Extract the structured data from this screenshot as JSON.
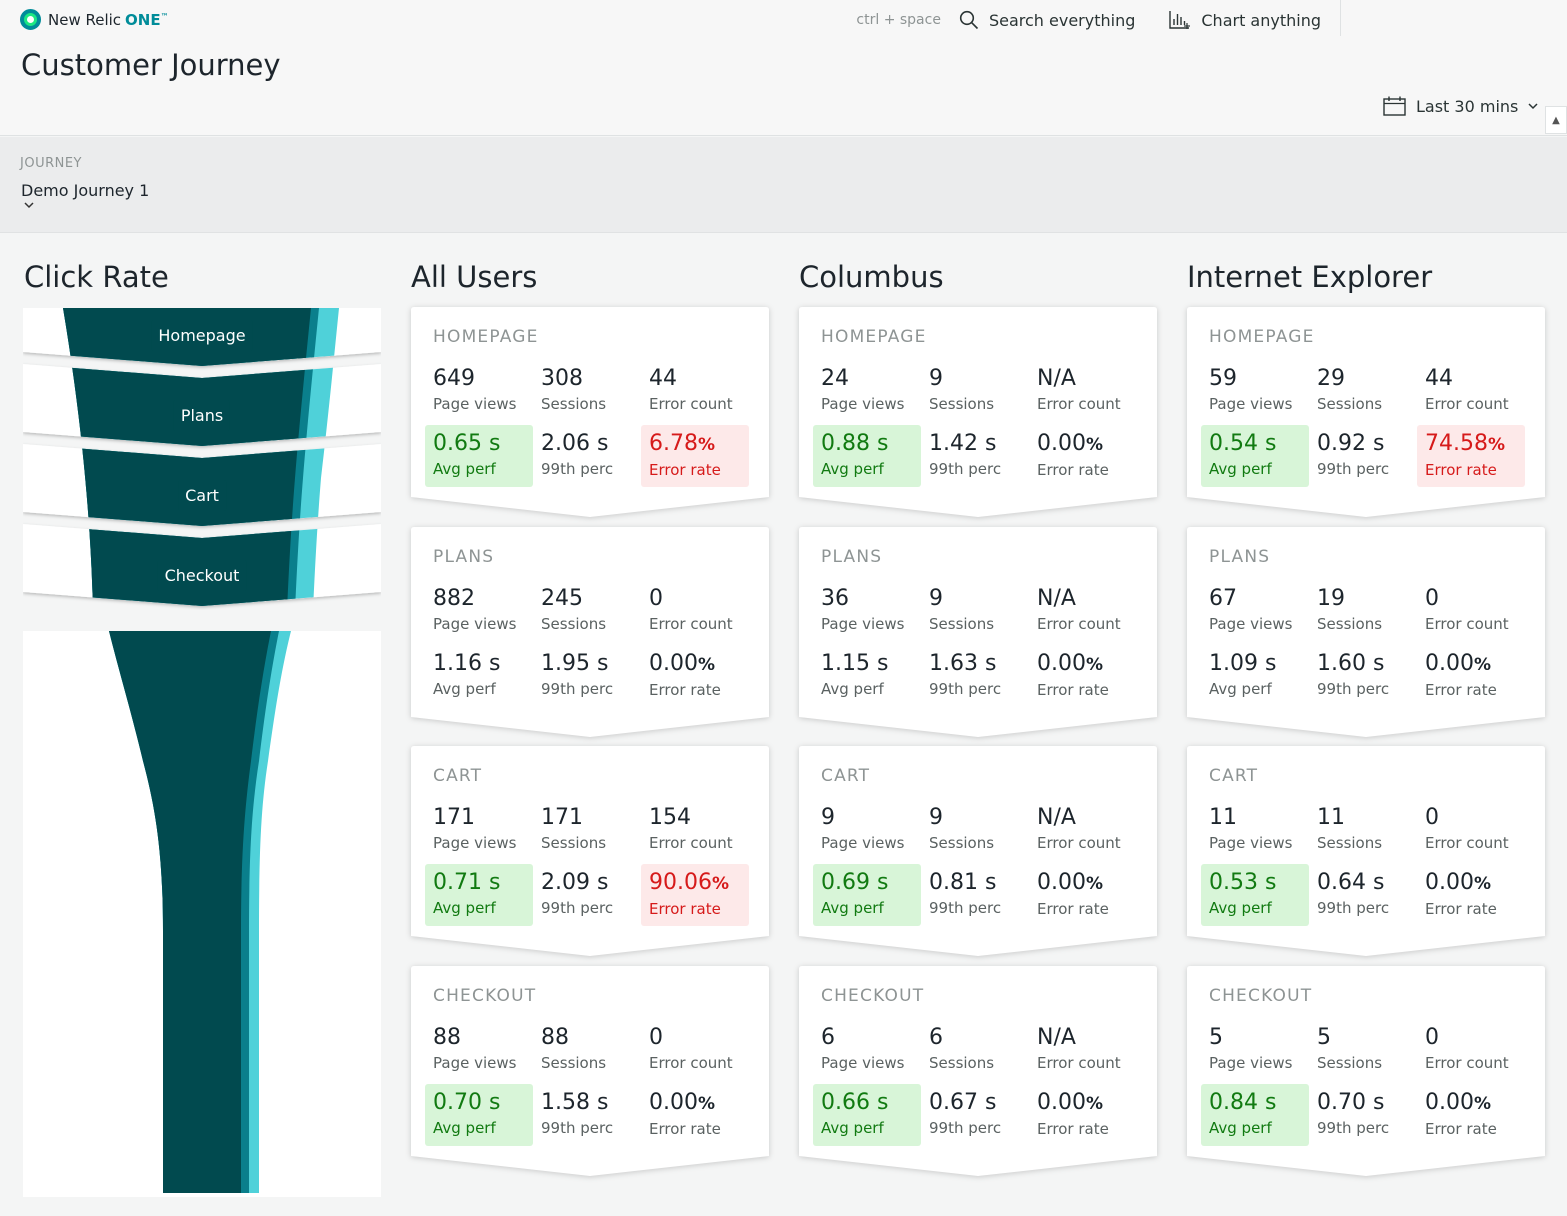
{
  "app": {
    "brand": "New Relic",
    "brand_suffix": "ONE",
    "trademark": "™"
  },
  "header": {
    "page_title": "Customer Journey",
    "shortcut": "ctrl + space",
    "search_label": "Search everything",
    "chart_label": "Chart anything",
    "time_range": "Last 30 mins"
  },
  "filter": {
    "label": "JOURNEY",
    "value": "Demo Journey 1"
  },
  "funnel": {
    "title": "Click Rate",
    "steps": [
      "Homepage",
      "Plans",
      "Cart",
      "Checkout"
    ],
    "colors": {
      "dark": "#014a4f",
      "mid": "#0a7f8c",
      "light": "#4fd1d9"
    }
  },
  "labels": {
    "page_views": "Page views",
    "sessions": "Sessions",
    "error_count": "Error count",
    "avg_perf": "Avg perf",
    "p99": "99th perc",
    "error_rate": "Error rate",
    "percent_unit": "%"
  },
  "status_colors": {
    "good_bg": "#d8f5d8",
    "good_fg": "#117a11",
    "bad_bg": "#fde9e9",
    "bad_fg": "#d61a1a"
  },
  "columns": [
    {
      "title": "All Users",
      "steps": [
        {
          "name": "HOMEPAGE",
          "page_views": "649",
          "sessions": "308",
          "error_count": "44",
          "avg_perf": "0.65 s",
          "p99": "2.06 s",
          "error_rate": "6.78",
          "avg_status": "good",
          "err_status": "bad"
        },
        {
          "name": "PLANS",
          "page_views": "882",
          "sessions": "245",
          "error_count": "0",
          "avg_perf": "1.16 s",
          "p99": "1.95 s",
          "error_rate": "0.00",
          "avg_status": "none",
          "err_status": "none"
        },
        {
          "name": "CART",
          "page_views": "171",
          "sessions": "171",
          "error_count": "154",
          "avg_perf": "0.71 s",
          "p99": "2.09 s",
          "error_rate": "90.06",
          "avg_status": "good",
          "err_status": "bad"
        },
        {
          "name": "CHECKOUT",
          "page_views": "88",
          "sessions": "88",
          "error_count": "0",
          "avg_perf": "0.70 s",
          "p99": "1.58 s",
          "error_rate": "0.00",
          "avg_status": "good",
          "err_status": "none"
        }
      ]
    },
    {
      "title": "Columbus",
      "steps": [
        {
          "name": "HOMEPAGE",
          "page_views": "24",
          "sessions": "9",
          "error_count": "N/A",
          "avg_perf": "0.88 s",
          "p99": "1.42 s",
          "error_rate": "0.00",
          "avg_status": "good",
          "err_status": "none"
        },
        {
          "name": "PLANS",
          "page_views": "36",
          "sessions": "9",
          "error_count": "N/A",
          "avg_perf": "1.15 s",
          "p99": "1.63 s",
          "error_rate": "0.00",
          "avg_status": "none",
          "err_status": "none"
        },
        {
          "name": "CART",
          "page_views": "9",
          "sessions": "9",
          "error_count": "N/A",
          "avg_perf": "0.69 s",
          "p99": "0.81 s",
          "error_rate": "0.00",
          "avg_status": "good",
          "err_status": "none"
        },
        {
          "name": "CHECKOUT",
          "page_views": "6",
          "sessions": "6",
          "error_count": "N/A",
          "avg_perf": "0.66 s",
          "p99": "0.67 s",
          "error_rate": "0.00",
          "avg_status": "good",
          "err_status": "none"
        }
      ]
    },
    {
      "title": "Internet Explorer",
      "steps": [
        {
          "name": "HOMEPAGE",
          "page_views": "59",
          "sessions": "29",
          "error_count": "44",
          "avg_perf": "0.54 s",
          "p99": "0.92 s",
          "error_rate": "74.58",
          "avg_status": "good",
          "err_status": "bad"
        },
        {
          "name": "PLANS",
          "page_views": "67",
          "sessions": "19",
          "error_count": "0",
          "avg_perf": "1.09 s",
          "p99": "1.60 s",
          "error_rate": "0.00",
          "avg_status": "none",
          "err_status": "none"
        },
        {
          "name": "CART",
          "page_views": "11",
          "sessions": "11",
          "error_count": "0",
          "avg_perf": "0.53 s",
          "p99": "0.64 s",
          "error_rate": "0.00",
          "avg_status": "good",
          "err_status": "none"
        },
        {
          "name": "CHECKOUT",
          "page_views": "5",
          "sessions": "5",
          "error_count": "0",
          "avg_perf": "0.84 s",
          "p99": "0.70 s",
          "error_rate": "0.00",
          "avg_status": "good",
          "err_status": "none"
        }
      ]
    }
  ]
}
